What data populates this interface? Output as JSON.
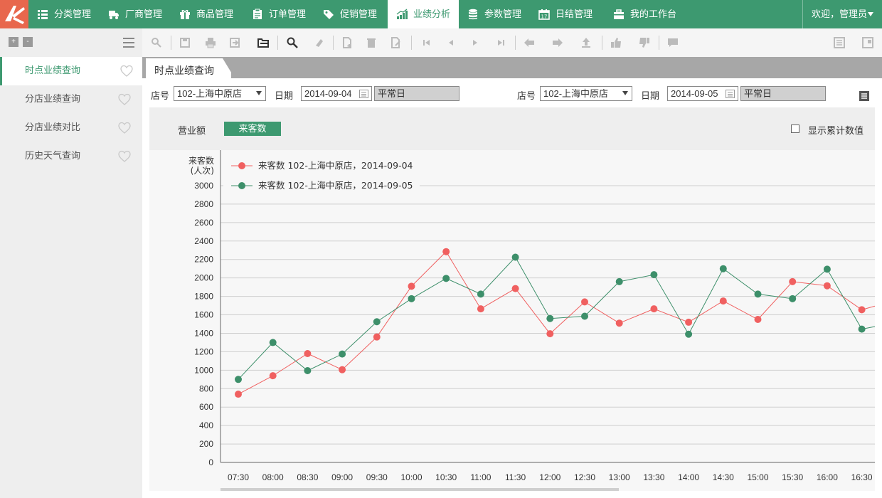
{
  "nav": {
    "items": [
      {
        "label": "分类管理",
        "icon": "grid-list-icon",
        "active": false
      },
      {
        "label": "厂商管理",
        "icon": "truck-icon",
        "active": false
      },
      {
        "label": "商品管理",
        "icon": "gift-icon",
        "active": false
      },
      {
        "label": "订单管理",
        "icon": "clipboard-icon",
        "active": false
      },
      {
        "label": "促销管理",
        "icon": "tag-icon",
        "active": false
      },
      {
        "label": "业绩分析",
        "icon": "bar-chart-icon",
        "active": true
      },
      {
        "label": "参数管理",
        "icon": "database-icon",
        "active": false
      },
      {
        "label": "日结管理",
        "icon": "calendar-icon",
        "active": false
      },
      {
        "label": "我的工作台",
        "icon": "briefcase-icon",
        "active": false
      }
    ],
    "welcome": "欢迎，管理员"
  },
  "sidebar": {
    "items": [
      {
        "label": "时点业绩查询",
        "active": true
      },
      {
        "label": "分店业绩查询",
        "active": false
      },
      {
        "label": "分店业绩对比",
        "active": false
      },
      {
        "label": "历史天气查询",
        "active": false
      }
    ]
  },
  "tab": {
    "label": "时点业绩查询"
  },
  "filters": {
    "left": {
      "store_label": "店号",
      "store": "102-上海中原店",
      "date_label": "日期",
      "date": "2014-09-04",
      "day_type": "平常日"
    },
    "right": {
      "store_label": "店号",
      "store": "102-上海中原店",
      "date_label": "日期",
      "date": "2014-09-05",
      "day_type": "平常日"
    }
  },
  "metrics": {
    "sales": "营业额",
    "visitors": "来客数",
    "cumulative": "显示累计数值"
  },
  "colors": {
    "accent": "#3d9970",
    "series1": "#f06060",
    "series2": "#3d8f6a",
    "logo": "#e8674d"
  },
  "chart_data": {
    "type": "line",
    "ylabel_line1": "来客数",
    "ylabel_line2": "(人次)",
    "ylim": [
      0,
      3000
    ],
    "yticks": [
      0,
      200,
      400,
      600,
      800,
      1000,
      1200,
      1400,
      1600,
      1800,
      2000,
      2200,
      2400,
      2600,
      2800,
      3000
    ],
    "grid": true,
    "legend": "top-left",
    "categories": [
      "07:30",
      "08:00",
      "08:30",
      "09:00",
      "09:30",
      "10:00",
      "10:30",
      "11:00",
      "11:30",
      "12:00",
      "12:30",
      "13:00",
      "13:30",
      "14:00",
      "14:30",
      "15:00",
      "15:30",
      "16:00",
      "16:30"
    ],
    "series": [
      {
        "name": "来客数 102-上海中原店，2014-09-04",
        "color": "#f06060",
        "values": [
          740,
          940,
          1180,
          1005,
          1360,
          1910,
          2285,
          1665,
          1885,
          1395,
          1740,
          1510,
          1665,
          1520,
          1750,
          1550,
          1960,
          1915,
          1655
        ]
      },
      {
        "name": "来客数 102-上海中原店，2014-09-05",
        "color": "#3d8f6a",
        "values": [
          900,
          1300,
          995,
          1175,
          1525,
          1775,
          1995,
          1825,
          2225,
          1560,
          1585,
          1960,
          2035,
          1390,
          2100,
          1825,
          1775,
          2095,
          1445
        ]
      }
    ],
    "trailing": [
      1760,
      1520
    ]
  }
}
